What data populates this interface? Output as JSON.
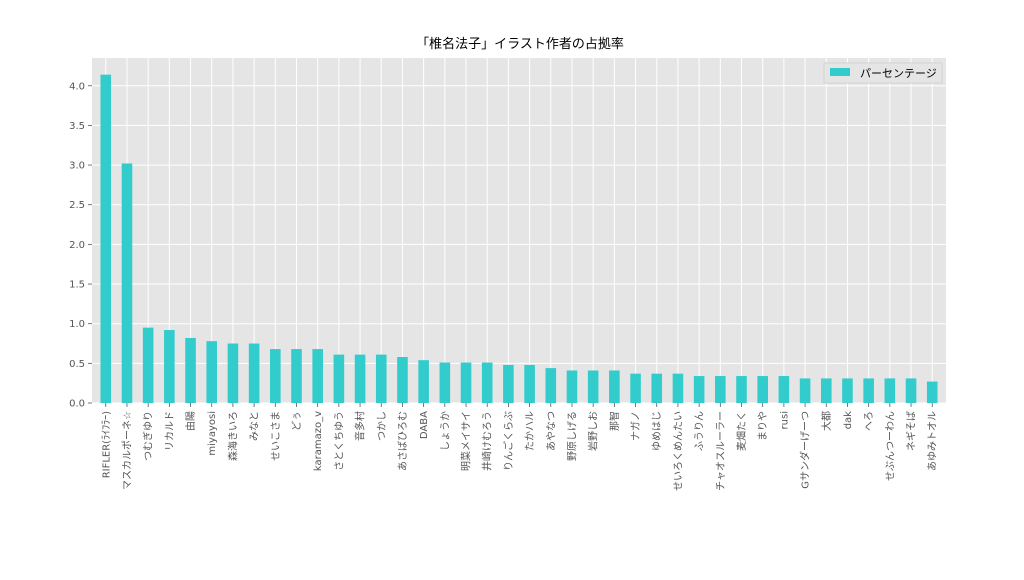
{
  "chart_data": {
    "type": "bar",
    "title": "「椎名法子」イラスト作者の占拠率",
    "xlabel": "",
    "ylabel": "",
    "ylim": [
      0,
      4.35
    ],
    "yticks": [
      "0.0",
      "0.5",
      "1.0",
      "1.5",
      "2.0",
      "2.5",
      "3.0",
      "3.5",
      "4.0"
    ],
    "grid": true,
    "legend_position": "top-right",
    "colors": {
      "bar": "#33cccc",
      "plot_bg": "#e5e5e5",
      "grid": "#ffffff"
    },
    "categories": [
      "RIFLER(ﾗｲﾌﾗｰ)",
      "マスカルポーネ☆",
      "つむぎゆり",
      "リカルド",
      "由陽",
      "miyayosi",
      "森海きいろ",
      "みなと",
      "せいこさま",
      "どぅ",
      "karamazo_v",
      "さとくちゆう",
      "音多村",
      "つかし",
      "あさばひろむ",
      "DABA",
      "しょうか",
      "明菜メイサイ",
      "井崎けむろう",
      "りんごくらぶ",
      "たかハル",
      "あやなつ",
      "野原しげる",
      "岩野しお",
      "那智",
      "ナガノ",
      "ゆめはじ",
      "せいろくめんたい",
      "ふうりん",
      "チャオスルーラー",
      "麦畑たく",
      "まりや",
      "rusi",
      "Gサンダーげーつ",
      "大都",
      "dak",
      "へろ",
      "せぶんつーわん",
      "ネギそば",
      "あゆみトオル"
    ],
    "series": [
      {
        "name": "パーセンテージ",
        "values": [
          4.14,
          3.02,
          0.95,
          0.92,
          0.82,
          0.78,
          0.75,
          0.75,
          0.68,
          0.68,
          0.68,
          0.61,
          0.61,
          0.61,
          0.58,
          0.54,
          0.51,
          0.51,
          0.51,
          0.48,
          0.48,
          0.44,
          0.41,
          0.41,
          0.41,
          0.37,
          0.37,
          0.37,
          0.34,
          0.34,
          0.34,
          0.34,
          0.34,
          0.31,
          0.31,
          0.31,
          0.31,
          0.31,
          0.31,
          0.27
        ]
      }
    ]
  }
}
